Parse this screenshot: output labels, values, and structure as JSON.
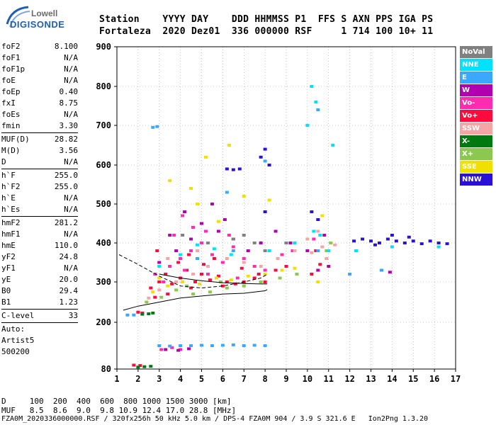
{
  "logo": {
    "top": "Lowell",
    "bottom": "DIGISONDE"
  },
  "header": {
    "row1": "Station    YYYY DAY    DDD HHMMSS P1  FFS S AXN PPS IGA PS",
    "row2": "Fortaleza  2020 Dez01  336 000000 RSF     1 714 100 10+ 11"
  },
  "parameters": [
    {
      "label": "foF2",
      "value": "8.100"
    },
    {
      "label": "foF1",
      "value": "N/A"
    },
    {
      "label": "foF1p",
      "value": "N/A"
    },
    {
      "label": "foE",
      "value": "N/A"
    },
    {
      "label": "foEp",
      "value": "0.40"
    },
    {
      "label": "fxI",
      "value": "8.75"
    },
    {
      "label": "foEs",
      "value": "N/A"
    },
    {
      "label": "fmin",
      "value": "3.30"
    },
    {
      "label": "MUF(D)",
      "value": "28.82"
    },
    {
      "label": "M(D)",
      "value": "3.56"
    },
    {
      "label": "D",
      "value": "N/A"
    },
    {
      "label": "h`F",
      "value": "255.0"
    },
    {
      "label": "h`F2",
      "value": "255.0"
    },
    {
      "label": "h`E",
      "value": "N/A"
    },
    {
      "label": "h`Es",
      "value": "N/A"
    },
    {
      "label": "hmF2",
      "value": "281.2"
    },
    {
      "label": "hmF1",
      "value": "N/A"
    },
    {
      "label": "hmE",
      "value": "110.0"
    },
    {
      "label": "yF2",
      "value": "24.8"
    },
    {
      "label": "yF1",
      "value": "N/A"
    },
    {
      "label": "yE",
      "value": "20.0"
    },
    {
      "label": "B0",
      "value": "29.4"
    },
    {
      "label": "B1",
      "value": "1.23"
    },
    {
      "label": "C-level",
      "value": "33"
    }
  ],
  "auto": {
    "line1": "Auto:",
    "line2": "Artist5",
    "line3": "500200"
  },
  "legend": [
    {
      "label": "NoVal",
      "color": "#808080"
    },
    {
      "label": "NNE",
      "color": "#00e0ff"
    },
    {
      "label": "E",
      "color": "#3aa8ff"
    },
    {
      "label": "W",
      "color": "#b000b0"
    },
    {
      "label": "Vo-",
      "color": "#ff2bb0"
    },
    {
      "label": "Vo+",
      "color": "#ff0a3c"
    },
    {
      "label": "SSW",
      "color": "#f4a6a6"
    },
    {
      "label": "X-",
      "color": "#007a10"
    },
    {
      "label": "X+",
      "color": "#8cc850"
    },
    {
      "label": "SSE",
      "color": "#f0e000"
    },
    {
      "label": "NNW",
      "color": "#2a10d8"
    }
  ],
  "footer": {
    "d_line": "D     100  200  400  600  800 1000 1500 3000 [km]",
    "muf_line": "MUF   8.5  8.6  9.0  9.8 10.9 12.4 17.0 28.8 [MHz]",
    "file_line": "FZA0M_2020336000000.RSF / 320fx256h 50 kHz 5.0 km / DPS-4 FZA0M 904 / 3.9 S 321.6 E   Ion2Png 1.3.20"
  },
  "chart_data": {
    "type": "scatter",
    "xlim": [
      1,
      17
    ],
    "ylim": [
      80,
      900
    ],
    "x_ticks": [
      "1",
      "2",
      "3",
      "4",
      "5",
      "6",
      "7",
      "8",
      "9",
      "10",
      "11",
      "12",
      "13",
      "14",
      "15",
      "16",
      "17"
    ],
    "y_ticks": [
      "80",
      "200",
      "300",
      "400",
      "500",
      "600",
      "700",
      "800",
      "900"
    ],
    "grid": "dotted",
    "series": [
      {
        "name": "Vo+",
        "points": [
          [
            2.6,
            285
          ],
          [
            3.0,
            300
          ],
          [
            3.3,
            320
          ],
          [
            3.6,
            295
          ],
          [
            4.0,
            310
          ],
          [
            4.3,
            330
          ],
          [
            4.7,
            300
          ],
          [
            5.0,
            320
          ],
          [
            5.4,
            305
          ],
          [
            5.8,
            315
          ],
          [
            6.2,
            300
          ],
          [
            6.6,
            295
          ],
          [
            7.0,
            300
          ],
          [
            7.5,
            310
          ],
          [
            8.0,
            300
          ],
          [
            2.8,
            262
          ],
          [
            3.4,
            270
          ],
          [
            4.5,
            285
          ],
          [
            6.0,
            290
          ],
          [
            7.7,
            320
          ],
          [
            8.5,
            330
          ],
          [
            9.0,
            340
          ],
          [
            3.9,
            350
          ],
          [
            5.1,
            345
          ],
          [
            6.9,
            335
          ],
          [
            2.9,
            380
          ],
          [
            4.4,
            370
          ],
          [
            5.6,
            360
          ],
          [
            2.0,
            225
          ],
          [
            2.2,
            223
          ],
          [
            1.8,
            90
          ],
          [
            2.1,
            89
          ],
          [
            10.2,
            320
          ],
          [
            10.6,
            345
          ],
          [
            10.4,
            380
          ]
        ]
      },
      {
        "name": "Vo-",
        "points": [
          [
            2.8,
            320
          ],
          [
            3.5,
            340
          ],
          [
            4.0,
            360
          ],
          [
            4.5,
            380
          ],
          [
            5.0,
            400
          ],
          [
            5.5,
            370
          ],
          [
            6.0,
            350
          ],
          [
            6.5,
            390
          ],
          [
            7.0,
            360
          ],
          [
            7.5,
            340
          ],
          [
            8.0,
            330
          ],
          [
            3.2,
            300
          ],
          [
            4.2,
            330
          ],
          [
            5.3,
            320
          ],
          [
            6.7,
            310
          ],
          [
            3.7,
            420
          ],
          [
            4.6,
            440
          ],
          [
            5.2,
            430
          ],
          [
            6.3,
            420
          ],
          [
            4.1,
            470
          ],
          [
            3.1,
            130
          ],
          [
            3.6,
            135
          ],
          [
            4.0,
            130
          ],
          [
            8.8,
            370
          ],
          [
            9.3,
            380
          ],
          [
            10.3,
            410
          ]
        ]
      },
      {
        "name": "W",
        "points": [
          [
            3.0,
            350
          ],
          [
            3.8,
            380
          ],
          [
            4.5,
            410
          ],
          [
            5.0,
            450
          ],
          [
            5.8,
            430
          ],
          [
            6.5,
            410
          ],
          [
            7.2,
            380
          ],
          [
            4.2,
            480
          ],
          [
            5.5,
            500
          ],
          [
            3.3,
            130
          ],
          [
            3.9,
            128
          ],
          [
            4.4,
            132
          ],
          [
            3.5,
            420
          ],
          [
            6.1,
            460
          ],
          [
            7.8,
            400
          ],
          [
            8.5,
            430
          ],
          [
            9.2,
            400
          ],
          [
            10.0,
            380
          ],
          [
            13.5,
            330
          ],
          [
            13.9,
            325
          ],
          [
            11.0,
            340
          ],
          [
            10.5,
            330
          ],
          [
            10.8,
            420
          ]
        ]
      },
      {
        "name": "SSW",
        "points": [
          [
            2.5,
            260
          ],
          [
            3.0,
            280
          ],
          [
            3.8,
            300
          ],
          [
            4.6,
            320
          ],
          [
            5.3,
            340
          ],
          [
            6.2,
            360
          ],
          [
            7.0,
            350
          ],
          [
            7.8,
            340
          ],
          [
            8.6,
            360
          ],
          [
            9.4,
            380
          ],
          [
            4.8,
            380
          ],
          [
            3.4,
            360
          ],
          [
            10.2,
            375
          ],
          [
            10.7,
            390
          ],
          [
            11.3,
            395
          ],
          [
            10.9,
            360
          ],
          [
            10.0,
            410
          ],
          [
            10.5,
            430
          ]
        ]
      },
      {
        "name": "SSE",
        "points": [
          [
            2.7,
            275
          ],
          [
            3.4,
            290
          ],
          [
            4.1,
            300
          ],
          [
            4.9,
            295
          ],
          [
            5.7,
            310
          ],
          [
            6.4,
            305
          ],
          [
            7.2,
            315
          ],
          [
            8.0,
            320
          ],
          [
            8.8,
            330
          ],
          [
            9.4,
            335
          ],
          [
            3.0,
            310
          ],
          [
            3.5,
            560
          ],
          [
            4.5,
            540
          ],
          [
            5.2,
            620
          ],
          [
            6.3,
            650
          ],
          [
            7.0,
            520
          ],
          [
            8.2,
            510
          ],
          [
            10.7,
            470
          ],
          [
            10.5,
            300
          ],
          [
            4.8,
            500
          ],
          [
            5.8,
            455
          ]
        ]
      },
      {
        "name": "X+",
        "points": [
          [
            2.4,
            250
          ],
          [
            3.1,
            262
          ],
          [
            3.8,
            280
          ],
          [
            4.6,
            270
          ],
          [
            5.4,
            275
          ],
          [
            6.2,
            285
          ],
          [
            7.0,
            290
          ],
          [
            7.8,
            300
          ],
          [
            8.7,
            310
          ],
          [
            9.5,
            320
          ],
          [
            5.9,
            300
          ],
          [
            4.3,
            290
          ],
          [
            10.9,
            380
          ],
          [
            11.1,
            400
          ]
        ]
      },
      {
        "name": "X-",
        "points": [
          [
            2.2,
            220
          ],
          [
            2.5,
            221
          ],
          [
            2.7,
            223
          ],
          [
            2.0,
            85
          ],
          [
            2.3,
            86
          ],
          [
            2.6,
            87
          ]
        ]
      },
      {
        "name": "E",
        "points": [
          [
            1.5,
            218
          ],
          [
            1.8,
            218
          ],
          [
            2.7,
            695
          ],
          [
            2.9,
            697
          ],
          [
            3.0,
            140
          ],
          [
            3.5,
            139
          ],
          [
            4.0,
            140
          ],
          [
            4.5,
            140
          ],
          [
            5.0,
            141
          ],
          [
            5.5,
            140
          ],
          [
            6.0,
            141
          ],
          [
            6.5,
            142
          ],
          [
            7.0,
            140
          ],
          [
            7.5,
            141
          ],
          [
            8.0,
            140
          ],
          [
            4.8,
            360
          ],
          [
            6.5,
            380
          ],
          [
            10.5,
            380
          ],
          [
            12.0,
            320
          ],
          [
            13.5,
            330
          ],
          [
            6.2,
            530
          ],
          [
            8.0,
            610
          ],
          [
            10.0,
            700
          ],
          [
            10.5,
            740
          ]
        ]
      },
      {
        "name": "NNE",
        "points": [
          [
            3.0,
            340
          ],
          [
            4.0,
            370
          ],
          [
            4.8,
            395
          ],
          [
            5.6,
            385
          ],
          [
            6.4,
            370
          ],
          [
            8.2,
            380
          ],
          [
            9.4,
            400
          ],
          [
            10.3,
            430
          ],
          [
            10.6,
            420
          ],
          [
            11.0,
            380
          ],
          [
            12.3,
            380
          ],
          [
            14.0,
            390
          ],
          [
            16.2,
            390
          ],
          [
            10.2,
            800
          ],
          [
            10.0,
            700
          ],
          [
            11.2,
            650
          ],
          [
            10.4,
            760
          ]
        ]
      },
      {
        "name": "NNW",
        "points": [
          [
            6.2,
            590
          ],
          [
            6.5,
            588
          ],
          [
            6.8,
            590
          ],
          [
            7.8,
            620
          ],
          [
            8.0,
            640
          ],
          [
            8.2,
            600
          ],
          [
            10.2,
            480
          ],
          [
            10.5,
            460
          ],
          [
            8.0,
            480
          ],
          [
            12.2,
            405
          ],
          [
            12.6,
            410
          ],
          [
            13.0,
            405
          ],
          [
            13.4,
            400
          ],
          [
            13.8,
            410
          ],
          [
            14.2,
            405
          ],
          [
            14.6,
            400
          ],
          [
            15.0,
            405
          ],
          [
            15.4,
            398
          ],
          [
            15.8,
            405
          ],
          [
            16.2,
            400
          ],
          [
            16.6,
            398
          ],
          [
            13.2,
            395
          ],
          [
            14.0,
            420
          ],
          [
            14.8,
            415
          ]
        ]
      },
      {
        "name": "NoVal",
        "points": [
          [
            6.5,
            410
          ],
          [
            7.0,
            420
          ],
          [
            7.5,
            400
          ],
          [
            8.0,
            380
          ],
          [
            5.3,
            400
          ],
          [
            4.1,
            420
          ],
          [
            9.0,
            400
          ]
        ]
      }
    ],
    "curves": [
      {
        "style": "dashed",
        "points": [
          [
            1.1,
            370
          ],
          [
            2.0,
            345
          ],
          [
            3.0,
            315
          ],
          [
            4.0,
            290
          ],
          [
            5.0,
            285
          ],
          [
            6.0,
            290
          ],
          [
            7.0,
            300
          ],
          [
            7.8,
            310
          ],
          [
            8.1,
            320
          ]
        ]
      },
      {
        "style": "solid",
        "points": [
          [
            1.3,
            230
          ],
          [
            2.0,
            240
          ],
          [
            3.0,
            250
          ],
          [
            4.0,
            260
          ],
          [
            5.0,
            265
          ],
          [
            6.0,
            270
          ],
          [
            7.0,
            272
          ],
          [
            8.0,
            278
          ],
          [
            8.1,
            281
          ]
        ]
      },
      {
        "style": "solid",
        "points": [
          [
            3.0,
            320
          ],
          [
            4.0,
            310
          ],
          [
            5.0,
            303
          ],
          [
            6.0,
            298
          ],
          [
            7.0,
            296
          ],
          [
            7.8,
            295
          ],
          [
            8.1,
            295
          ]
        ]
      }
    ]
  }
}
